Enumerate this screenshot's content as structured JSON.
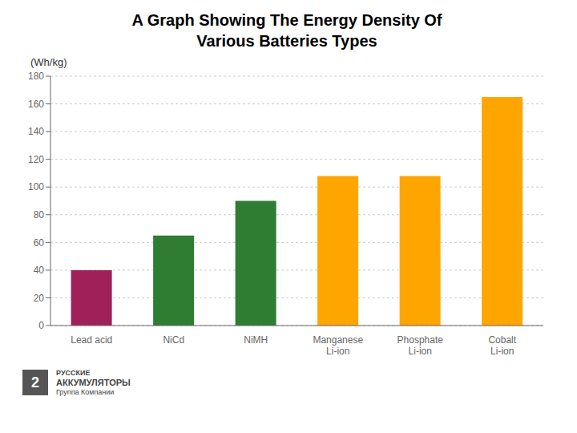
{
  "chart_data": {
    "type": "bar",
    "title": "A Graph Showing The Energy Density Of\nVarious Batteries Types",
    "ylabel": "(Wh/kg)",
    "categories": [
      "Lead acid",
      "NiCd",
      "NiMH",
      "Manganese\nLi-ion",
      "Phosphate\nLi-ion",
      "Cobalt\nLi-ion"
    ],
    "values": [
      40,
      65,
      90,
      108,
      108,
      165
    ],
    "colors": [
      "#a0205a",
      "#2e7d32",
      "#2e7d32",
      "#ffa500",
      "#ffa500",
      "#ffa500"
    ],
    "ylim": [
      0,
      180
    ],
    "yticks": [
      0,
      20,
      40,
      60,
      80,
      100,
      120,
      140,
      160,
      180
    ],
    "grid": true,
    "annotations": [
      "2",
      "РУССКИЕ",
      "АККУМУЛЯТОРЫ",
      "Группа Компании"
    ]
  }
}
